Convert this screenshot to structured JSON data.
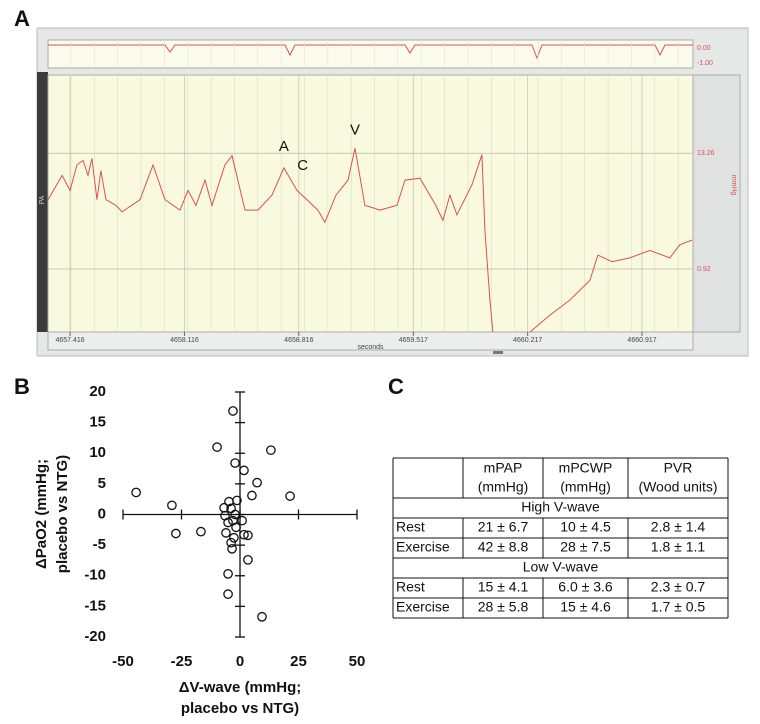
{
  "panel_labels": [
    "A",
    "B",
    "C"
  ],
  "chart_data": [
    {
      "type": "line",
      "channel": "PA",
      "xlabel": "seconds",
      "ylabel": "mmHg",
      "strip_labels": [
        "0.00",
        "-1.00"
      ],
      "color": "#d9534f",
      "xlim": [
        4657.281,
        4661.229
      ],
      "ylim": [
        -5.8,
        21.6
      ],
      "xticks": [
        4657.416,
        4658.116,
        4658.816,
        4659.517,
        4660.217,
        4660.917
      ],
      "yticks": [
        13.26,
        0.92
      ],
      "grid": true,
      "x": [
        4657.281,
        4657.367,
        4657.416,
        4657.458,
        4657.495,
        4657.526,
        4657.55,
        4657.581,
        4657.605,
        4657.636,
        4657.697,
        4657.734,
        4657.844,
        4657.924,
        4657.997,
        4658.089,
        4658.138,
        4658.187,
        4658.242,
        4658.285,
        4658.364,
        4658.407,
        4658.487,
        4658.566,
        4658.652,
        4658.725,
        4658.805,
        4658.933,
        4658.976,
        4659.044,
        4659.117,
        4659.16,
        4659.221,
        4659.313,
        4659.417,
        4659.466,
        4659.558,
        4659.655,
        4659.698,
        4659.741,
        4659.784,
        4659.876,
        4659.937,
        4659.955,
        4659.986,
        4660.004,
        4660.1,
        4660.231,
        4660.353,
        4660.475,
        4660.598,
        4660.647,
        4660.733,
        4660.843,
        4660.965,
        4661.087,
        4661.149,
        4661.222
      ],
      "values": [
        8.3,
        10.9,
        9.3,
        12.0,
        12.5,
        10.9,
        12.7,
        8.3,
        11.4,
        8.3,
        7.7,
        7.0,
        8.3,
        12.0,
        8.3,
        7.2,
        9.3,
        7.7,
        10.4,
        7.7,
        12.0,
        13.0,
        7.2,
        7.2,
        8.8,
        11.7,
        9.3,
        7.2,
        5.9,
        8.8,
        10.4,
        13.8,
        7.7,
        7.2,
        7.7,
        10.4,
        10.6,
        7.7,
        6.1,
        8.8,
        6.7,
        9.9,
        13.1,
        5.1,
        -2.4,
        -5.8,
        null,
        -5.8,
        -4.0,
        -2.4,
        -0.3,
        2.4,
        1.7,
        2.1,
        2.9,
        2.1,
        3.5,
        4.0
      ],
      "annotations": [
        {
          "text": "A",
          "x": 4658.725,
          "y": 13.9
        },
        {
          "text": "C",
          "x": 4658.84,
          "y": 11.9
        },
        {
          "text": "V",
          "x": 4659.16,
          "y": 15.7
        }
      ]
    },
    {
      "type": "scatter",
      "xlabel": [
        "ΔV-wave (mmHg;",
        "placebo vs NTG)"
      ],
      "ylabel": [
        "ΔPaO2 (mmHg;",
        "placebo vs NTG)"
      ],
      "xlim": [
        -50,
        50
      ],
      "ylim": [
        -20,
        20
      ],
      "xticks": [
        -50,
        -25,
        0,
        25,
        50
      ],
      "yticks": [
        -20,
        -15,
        -10,
        -5,
        0,
        5,
        10,
        15,
        20
      ],
      "color": "#111111",
      "x": [
        -44.4,
        -29.1,
        -27.4,
        -16.7,
        -9.8,
        -3.0,
        -2.1,
        1.7,
        13.2,
        7.3,
        5.1,
        21.4,
        -4.7,
        -1.3,
        -3.8,
        -6.8,
        -6.4,
        -2.1,
        -5.1,
        0.9,
        -1.7,
        -6.0,
        3.4,
        1.7,
        -2.6,
        -3.8,
        -3.4,
        3.4,
        -5.1,
        -5.1,
        9.4,
        -3.0
      ],
      "values": [
        3.6,
        1.5,
        -3.1,
        -2.8,
        11.0,
        16.9,
        8.4,
        7.2,
        10.5,
        5.2,
        3.1,
        3.0,
        2.1,
        2.3,
        1.0,
        1.1,
        -0.2,
        0.0,
        -1.3,
        -1.0,
        -2.1,
        -3.0,
        -3.4,
        -3.3,
        -3.8,
        -4.6,
        -5.6,
        -7.4,
        -9.7,
        -13.0,
        -16.7,
        -1.0
      ]
    }
  ],
  "table": {
    "header": [
      [
        "mPAP",
        "(mmHg)"
      ],
      [
        "mPCWP",
        "(mmHg)"
      ],
      [
        "PVR",
        "(Wood units)"
      ]
    ],
    "groups": [
      {
        "title": "High V-wave",
        "rows": [
          [
            "Rest",
            "21 ± 6.7",
            "10 ± 4.5",
            "2.8 ± 1.4"
          ],
          [
            "Exercise",
            "42 ± 8.8",
            "28 ± 7.5",
            "1.8 ± 1.1"
          ]
        ]
      },
      {
        "title": "Low V-wave",
        "rows": [
          [
            "Rest",
            "15 ± 4.1",
            "6.0 ± 3.6",
            "2.3 ± 0.7"
          ],
          [
            "Exercise",
            "28 ± 5.8",
            "15 ± 4.6",
            "1.7 ± 0.5"
          ]
        ]
      }
    ]
  }
}
